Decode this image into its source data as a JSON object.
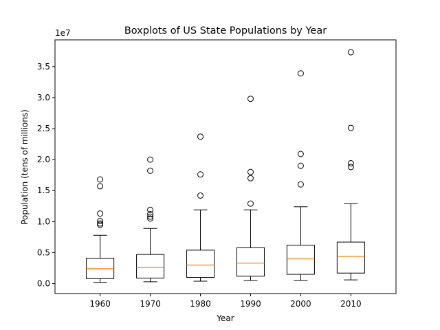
{
  "chart_data": {
    "type": "boxplot",
    "title": "Boxplots of US State Populations by Year",
    "xlabel": "Year",
    "ylabel": "Population (tens of millions)",
    "y_offset_label": "1e7",
    "categories": [
      "1960",
      "1970",
      "1980",
      "1990",
      "2000",
      "2010"
    ],
    "yticks": [
      0.0,
      0.5,
      1.0,
      1.5,
      2.0,
      2.5,
      3.0,
      3.5
    ],
    "ytick_labels": [
      "0.0",
      "0.5",
      "1.0",
      "1.5",
      "2.0",
      "2.5",
      "3.0",
      "3.5"
    ],
    "ylim": [
      -0.16,
      3.93
    ],
    "units_multiplier": "1e7",
    "boxes": [
      {
        "whisker_low": 0.02,
        "q1": 0.08,
        "median": 0.24,
        "q3": 0.41,
        "whisker_high": 0.78,
        "outliers": [
          0.95,
          0.97,
          1.01,
          1.13,
          1.57,
          1.68
        ]
      },
      {
        "whisker_low": 0.03,
        "q1": 0.09,
        "median": 0.26,
        "q3": 0.47,
        "whisker_high": 0.89,
        "outliers": [
          1.05,
          1.08,
          1.12,
          1.19,
          1.82,
          2.0
        ]
      },
      {
        "whisker_low": 0.04,
        "q1": 0.1,
        "median": 0.3,
        "q3": 0.54,
        "whisker_high": 1.19,
        "outliers": [
          1.42,
          1.76,
          2.37
        ]
      },
      {
        "whisker_low": 0.05,
        "q1": 0.12,
        "median": 0.33,
        "q3": 0.58,
        "whisker_high": 1.19,
        "outliers": [
          1.29,
          1.7,
          1.8,
          2.98
        ]
      },
      {
        "whisker_low": 0.05,
        "q1": 0.15,
        "median": 0.4,
        "q3": 0.62,
        "whisker_high": 1.24,
        "outliers": [
          1.6,
          1.9,
          2.09,
          3.39
        ]
      },
      {
        "whisker_low": 0.06,
        "q1": 0.17,
        "median": 0.44,
        "q3": 0.67,
        "whisker_high": 1.29,
        "outliers": [
          1.88,
          1.94,
          2.51,
          3.73
        ]
      }
    ],
    "colors": {
      "box": "#000000",
      "median": "#ff7f0e",
      "background": "#ffffff"
    },
    "grid": false,
    "legend": "none"
  }
}
